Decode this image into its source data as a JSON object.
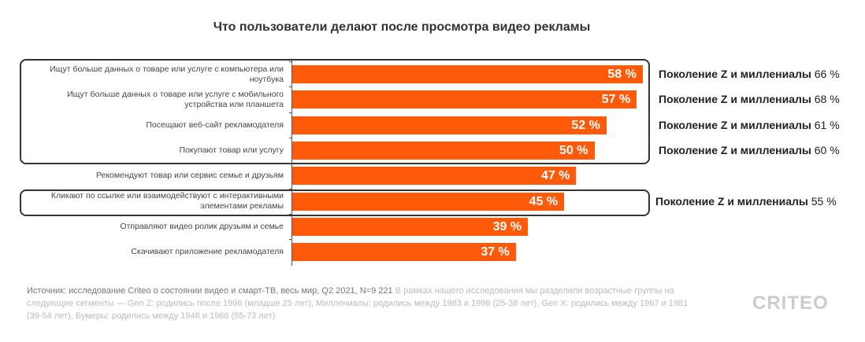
{
  "chart_data": {
    "type": "bar",
    "orientation": "horizontal",
    "title": "Что пользователи делают после просмотра видео рекламы",
    "categories": [
      "Ищут больше данных о товаре или услуге с компьютера или ноутбука",
      "Ищут больше данных о товаре или услуге с мобильного устройства или планшета",
      "Посещают веб-сайт рекламодателя",
      "Покупают товар или услугу",
      "Рекомендуют товар или сервис семье и друзьям",
      "Кликают по ссылке или взаимодействуют с интерактивными элементами рекламы",
      "Отправляют видео ролик друзьям и семье",
      "Скачивают приложение рекламодателя"
    ],
    "values": [
      58,
      57,
      52,
      50,
      47,
      45,
      39,
      37
    ],
    "value_labels": [
      "58 %",
      "57 %",
      "52 %",
      "50 %",
      "47 %",
      "45 %",
      "39 %",
      "37 %"
    ],
    "bar_color": "#ff5a0a",
    "xlim": [
      0,
      100
    ],
    "annotations": [
      {
        "index": 0,
        "label": "Поколение Z и миллениалы",
        "value": "66 %"
      },
      {
        "index": 1,
        "label": "Поколение Z и миллениалы",
        "value": "68 %"
      },
      {
        "index": 2,
        "label": "Поколение Z и миллениалы",
        "value": "61 %"
      },
      {
        "index": 3,
        "label": "Поколение Z и миллениалы",
        "value": "60 %"
      },
      {
        "index": 5,
        "label": "Поколение Z и миллениалы",
        "value": "55 %"
      }
    ]
  },
  "source": {
    "lead": "Источник: исследование Criteo о состоянии видео и смарт-ТВ, весь мир, Q2 2021, N=9 221",
    "note": "В рамках нашего исследования мы разделили возрастные группы на следующие сегменты — Gen Z: родились после 1996 (младше 25 лет), Миллениалы: родились между 1983 и 1996 (25-38 лет), Gen X: родились между 1967 и 1981 (39-54 лет), Бумеры: родились между 1948 и 1966 (55-73 лет)"
  },
  "logo": "CRITEO"
}
